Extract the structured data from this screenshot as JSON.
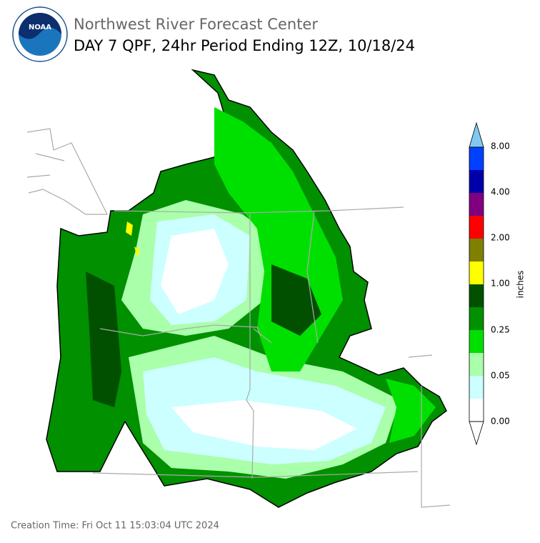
{
  "header": {
    "logo_text": "NOAA",
    "title": "Northwest River Forecast Center",
    "subtitle": "DAY 7 QPF, 24hr Period Ending 12Z, 10/18/24"
  },
  "colorbar": {
    "labels": [
      "0.00",
      "0.05",
      "0.25",
      "1.00",
      "2.00",
      "4.00",
      "8.00"
    ],
    "unit": "inches"
  },
  "footer": {
    "creation_time": "Creation Time: Fri Oct 11 15:03:04 UTC 2024"
  }
}
